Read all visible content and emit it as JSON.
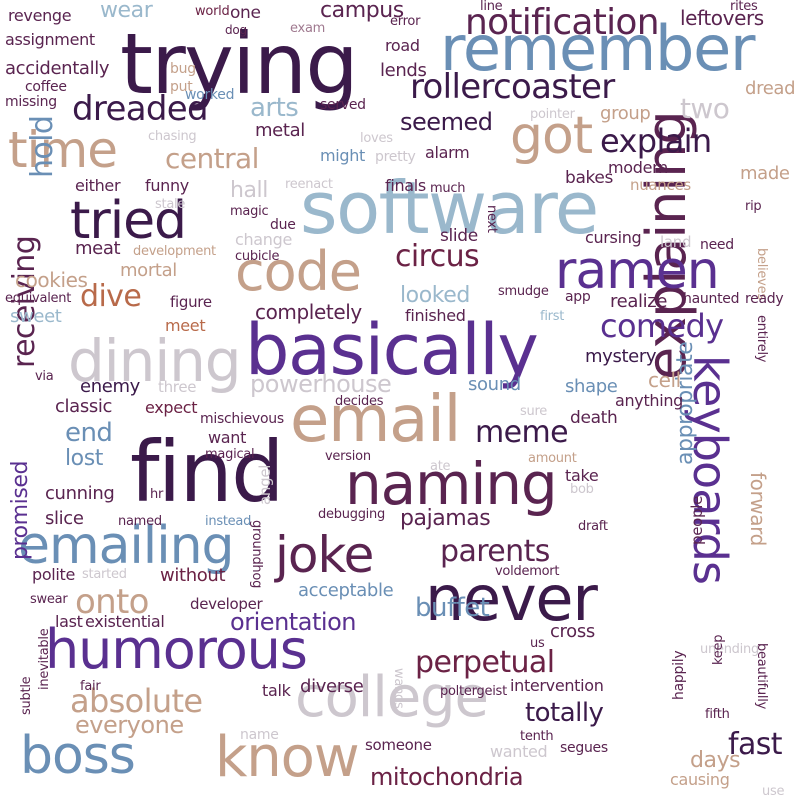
{
  "palette": {
    "dark_purple": "#3b1a4a",
    "plum": "#5a2450",
    "wine": "#6b2245",
    "violet": "#5a3090",
    "indigo": "#4a3aa0",
    "steel_blue": "#6a8fb5",
    "light_blue": "#9ab8cc",
    "tan": "#c4a08a",
    "rust": "#b86a4a",
    "light_gray": "#cdc7ce",
    "mauve": "#a07a90"
  },
  "words": [
    {
      "text": "trying"
    },
    {
      "text": "software"
    },
    {
      "text": "find"
    },
    {
      "text": "basically"
    },
    {
      "text": "email"
    },
    {
      "text": "explaining"
    },
    {
      "text": "remember"
    },
    {
      "text": "naming"
    },
    {
      "text": "keyboards"
    },
    {
      "text": "humorous"
    },
    {
      "text": "never"
    },
    {
      "text": "know"
    },
    {
      "text": "college"
    },
    {
      "text": "dining"
    },
    {
      "text": "code"
    },
    {
      "text": "joke"
    },
    {
      "text": "emailing"
    },
    {
      "text": "ramen"
    },
    {
      "text": "tried"
    },
    {
      "text": "boss"
    },
    {
      "text": "got"
    },
    {
      "text": "time"
    },
    {
      "text": "notification"
    },
    {
      "text": "rollercoaster"
    },
    {
      "text": "dreaded"
    },
    {
      "text": "explain"
    },
    {
      "text": "circus"
    },
    {
      "text": "comedy"
    },
    {
      "text": "parents"
    },
    {
      "text": "perpetual"
    },
    {
      "text": "receiving"
    },
    {
      "text": "absolute"
    },
    {
      "text": "mitochondria"
    },
    {
      "text": "meme"
    },
    {
      "text": "onto"
    },
    {
      "text": "pajamas"
    },
    {
      "text": "powerhouse"
    },
    {
      "text": "orientation"
    },
    {
      "text": "everyone"
    },
    {
      "text": "totally"
    },
    {
      "text": "central"
    },
    {
      "text": "hold"
    },
    {
      "text": "dive"
    },
    {
      "text": "end"
    },
    {
      "text": "fast"
    },
    {
      "text": "buffet"
    },
    {
      "text": "appropriate"
    },
    {
      "text": "forward"
    },
    {
      "text": "promised"
    },
    {
      "text": "arts"
    },
    {
      "text": "seemed"
    },
    {
      "text": "looked"
    },
    {
      "text": "completely"
    },
    {
      "text": "days"
    },
    {
      "text": "campus"
    },
    {
      "text": "wear"
    },
    {
      "text": "leftovers"
    },
    {
      "text": "two"
    },
    {
      "text": "revenge"
    },
    {
      "text": "world"
    },
    {
      "text": "one"
    },
    {
      "text": "dog"
    },
    {
      "text": "exam"
    },
    {
      "text": "error"
    },
    {
      "text": "line"
    },
    {
      "text": "rites"
    },
    {
      "text": "assignment"
    },
    {
      "text": "road"
    },
    {
      "text": "accidentally"
    },
    {
      "text": "lends"
    },
    {
      "text": "bug"
    },
    {
      "text": "coffee"
    },
    {
      "text": "put"
    },
    {
      "text": "missing"
    },
    {
      "text": "worked"
    },
    {
      "text": "dread"
    },
    {
      "text": "served"
    },
    {
      "text": "pointer"
    },
    {
      "text": "group"
    },
    {
      "text": "metal"
    },
    {
      "text": "loves"
    },
    {
      "text": "chasing"
    },
    {
      "text": "might"
    },
    {
      "text": "pretty"
    },
    {
      "text": "alarm"
    },
    {
      "text": "either"
    },
    {
      "text": "funny"
    },
    {
      "text": "hall"
    },
    {
      "text": "reenact"
    },
    {
      "text": "finals"
    },
    {
      "text": "much"
    },
    {
      "text": "bakes"
    },
    {
      "text": "modern"
    },
    {
      "text": "made"
    },
    {
      "text": "nuances"
    },
    {
      "text": "stale"
    },
    {
      "text": "magic"
    },
    {
      "text": "due"
    },
    {
      "text": "rip"
    },
    {
      "text": "next"
    },
    {
      "text": "change"
    },
    {
      "text": "cubicle"
    },
    {
      "text": "slide"
    },
    {
      "text": "cursing"
    },
    {
      "text": "land"
    },
    {
      "text": "need"
    },
    {
      "text": "meat"
    },
    {
      "text": "development"
    },
    {
      "text": "mortal"
    },
    {
      "text": "believes"
    },
    {
      "text": "cookies"
    },
    {
      "text": "smudge"
    },
    {
      "text": "app"
    },
    {
      "text": "haunted"
    },
    {
      "text": "ready"
    },
    {
      "text": "equivalent"
    },
    {
      "text": "figure"
    },
    {
      "text": "realize"
    },
    {
      "text": "sweet"
    },
    {
      "text": "first"
    },
    {
      "text": "finished"
    },
    {
      "text": "meet"
    },
    {
      "text": "mystery"
    },
    {
      "text": "entirely"
    },
    {
      "text": "via"
    },
    {
      "text": "enemy"
    },
    {
      "text": "three"
    },
    {
      "text": "sound"
    },
    {
      "text": "shape"
    },
    {
      "text": "cell"
    },
    {
      "text": "classic"
    },
    {
      "text": "expect"
    },
    {
      "text": "decides"
    },
    {
      "text": "mischievous"
    },
    {
      "text": "anything"
    },
    {
      "text": "death"
    },
    {
      "text": "sure"
    },
    {
      "text": "want"
    },
    {
      "text": "magical"
    },
    {
      "text": "lost"
    },
    {
      "text": "version"
    },
    {
      "text": "amount"
    },
    {
      "text": "ate"
    },
    {
      "text": "cunning"
    },
    {
      "text": "angel"
    },
    {
      "text": "take"
    },
    {
      "text": "hr"
    },
    {
      "text": "bob"
    },
    {
      "text": "slice"
    },
    {
      "text": "named"
    },
    {
      "text": "instead"
    },
    {
      "text": "groundhog"
    },
    {
      "text": "debugging"
    },
    {
      "text": "draft"
    },
    {
      "text": "people"
    },
    {
      "text": "started"
    },
    {
      "text": "polite"
    },
    {
      "text": "without"
    },
    {
      "text": "voldemort"
    },
    {
      "text": "swear"
    },
    {
      "text": "developer"
    },
    {
      "text": "acceptable"
    },
    {
      "text": "last"
    },
    {
      "text": "existential"
    },
    {
      "text": "us"
    },
    {
      "text": "cross"
    },
    {
      "text": "wands"
    },
    {
      "text": "unending"
    },
    {
      "text": "keep"
    },
    {
      "text": "beautifully"
    },
    {
      "text": "fair"
    },
    {
      "text": "talk"
    },
    {
      "text": "poltergeist"
    },
    {
      "text": "intervention"
    },
    {
      "text": "happily"
    },
    {
      "text": "diverse"
    },
    {
      "text": "inevitable"
    },
    {
      "text": "subtle"
    },
    {
      "text": "name"
    },
    {
      "text": "fifth"
    },
    {
      "text": "tenth"
    },
    {
      "text": "someone"
    },
    {
      "text": "wanted"
    },
    {
      "text": "segues"
    },
    {
      "text": "causing"
    },
    {
      "text": "use"
    }
  ]
}
